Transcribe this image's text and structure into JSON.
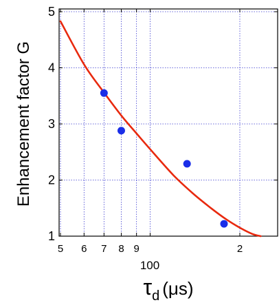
{
  "chart_data": {
    "type": "scatter",
    "title": "",
    "xlabel_symbol": "τ",
    "xlabel_subscript": "d",
    "xlabel_unit": "(μs)",
    "xlabel": "τd (μs)",
    "ylabel": "Enhancement factor G",
    "x_scale": "log",
    "xlim": [
      50,
      250
    ],
    "ylim": [
      1,
      5
    ],
    "grid": true,
    "x_ticks": [
      {
        "value": 50,
        "label": "5"
      },
      {
        "value": 60,
        "label": "6"
      },
      {
        "value": 70,
        "label": "7"
      },
      {
        "value": 80,
        "label": "8"
      },
      {
        "value": 90,
        "label": "9"
      },
      {
        "value": 100,
        "label": ""
      },
      {
        "value": 200,
        "label": "2"
      }
    ],
    "x_decade_label": "100",
    "y_ticks": [
      {
        "value": 1,
        "label": "1"
      },
      {
        "value": 2,
        "label": "2"
      },
      {
        "value": 3,
        "label": "3"
      },
      {
        "value": 4,
        "label": "4"
      },
      {
        "value": 5,
        "label": "5"
      }
    ],
    "series": [
      {
        "kind": "points",
        "color": "#1a2ee8",
        "x": [
          70,
          80,
          133,
          177
        ],
        "y": [
          3.55,
          2.88,
          2.29,
          1.22
        ]
      },
      {
        "kind": "fit-line",
        "color": "#e8290e",
        "x": [
          50,
          60,
          70,
          80,
          90,
          100,
          120,
          140,
          160,
          180,
          200,
          220,
          235
        ],
        "y": [
          4.83,
          4.06,
          3.56,
          3.15,
          2.83,
          2.55,
          2.08,
          1.75,
          1.5,
          1.3,
          1.15,
          1.04,
          1.0
        ]
      }
    ]
  }
}
